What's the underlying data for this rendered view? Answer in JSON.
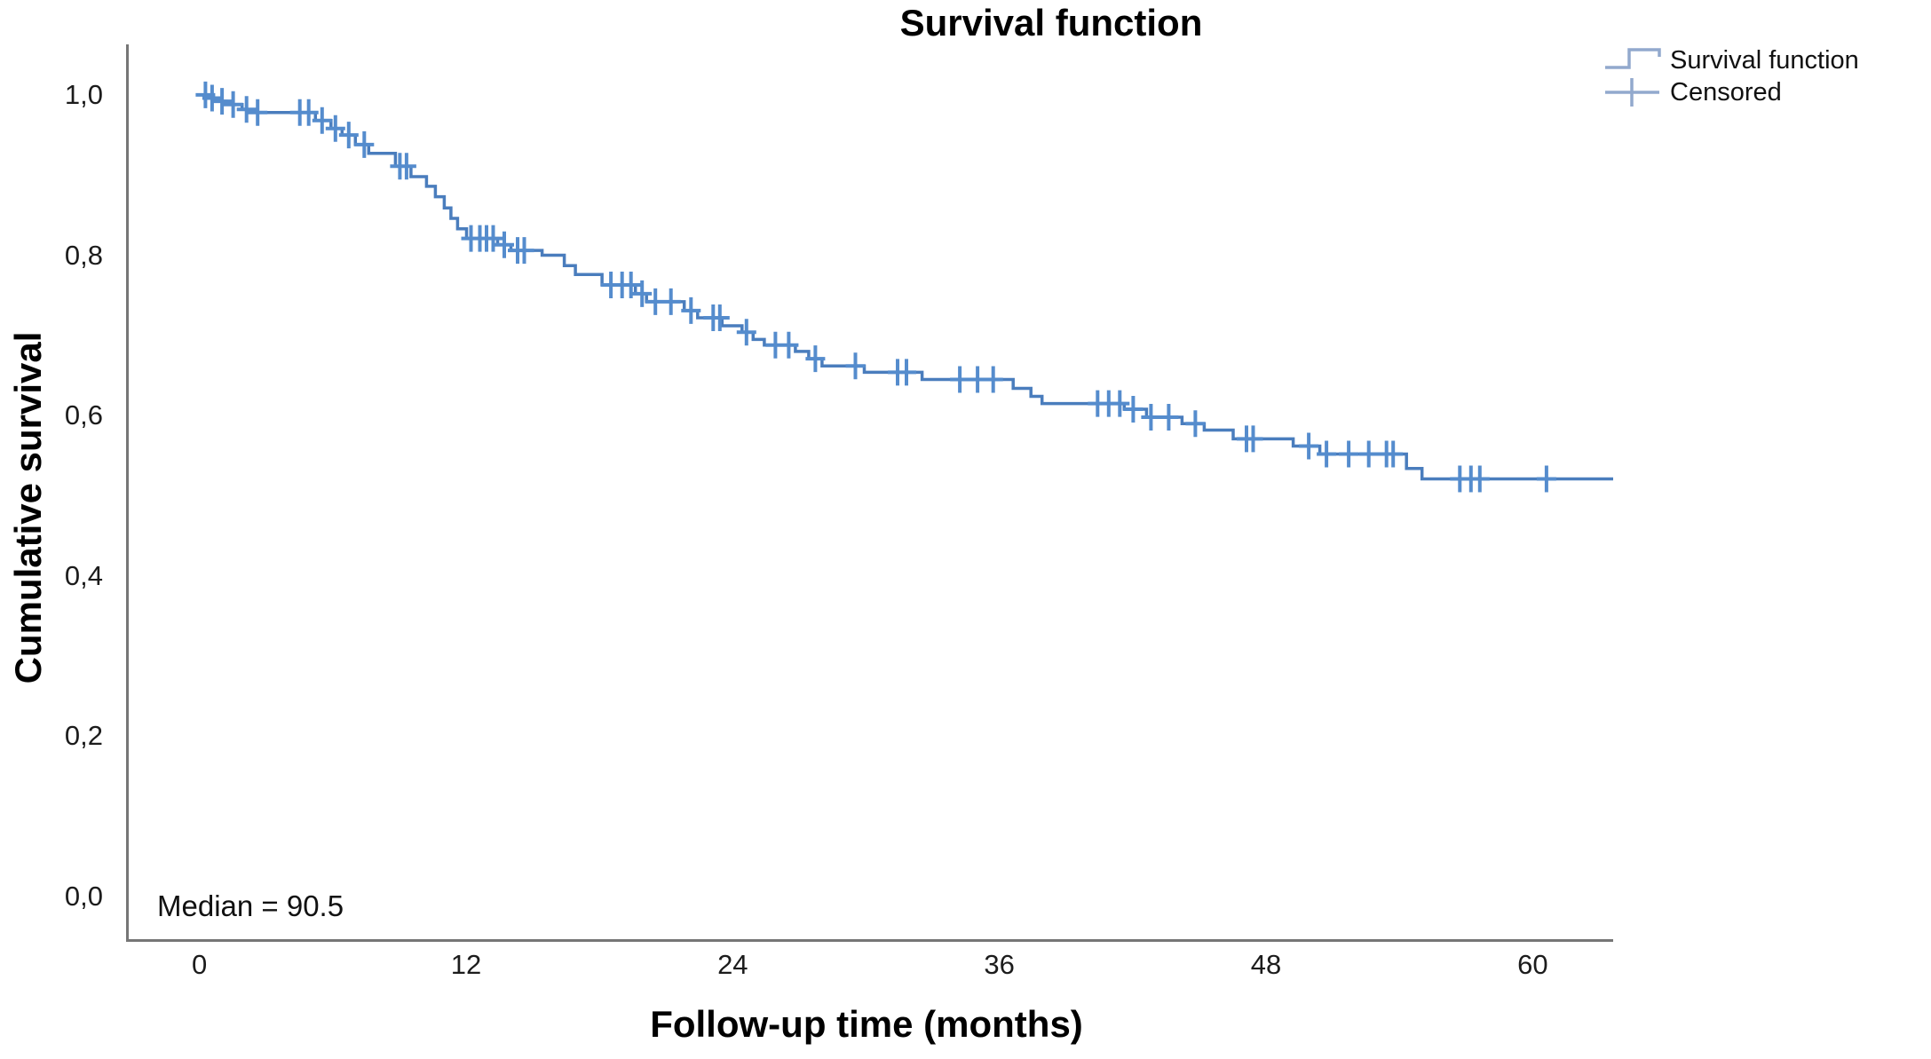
{
  "colors": {
    "curve": "#4a7dbd",
    "censor": "#558ccd",
    "legend_icon": "#92a9cd",
    "axis": "#767676",
    "text": "#111111"
  },
  "chart_data": {
    "type": "line",
    "subtype": "kaplan_meier_step",
    "title": "Survival function",
    "xlabel": "Follow-up time (months)",
    "ylabel": "Cumulative survival",
    "annotation": "Median = 90.5",
    "median_value": 90.5,
    "legend": [
      "Survival function",
      "Censored"
    ],
    "legend_position": "top-right",
    "grid": false,
    "xlim": [
      -3.3,
      63.5
    ],
    "ylim": [
      -0.053,
      1.063
    ],
    "x_ticks": [
      0,
      12,
      24,
      36,
      48,
      60
    ],
    "y_ticks": [
      "0,0",
      "0,2",
      "0,4",
      "0,6",
      "0,8",
      "1,0"
    ],
    "y_tick_values": [
      0.0,
      0.2,
      0.4,
      0.6,
      0.8,
      1.0
    ],
    "curve_end_time": 63.5,
    "series": [
      {
        "name": "Survival function",
        "steps": [
          [
            0.0,
            1.0
          ],
          [
            0.3,
            0.996
          ],
          [
            0.7,
            0.992
          ],
          [
            1.1,
            0.988
          ],
          [
            1.8,
            0.982
          ],
          [
            2.2,
            0.978
          ],
          [
            5.1,
            0.968
          ],
          [
            5.8,
            0.958
          ],
          [
            6.3,
            0.95
          ],
          [
            6.9,
            0.938
          ],
          [
            7.5,
            0.927
          ],
          [
            8.7,
            0.911
          ],
          [
            9.4,
            0.898
          ],
          [
            10.1,
            0.886
          ],
          [
            10.5,
            0.873
          ],
          [
            10.9,
            0.859
          ],
          [
            11.2,
            0.846
          ],
          [
            11.5,
            0.833
          ],
          [
            11.9,
            0.821
          ],
          [
            13.3,
            0.813
          ],
          [
            13.9,
            0.806
          ],
          [
            15.3,
            0.8
          ],
          [
            16.3,
            0.787
          ],
          [
            16.8,
            0.776
          ],
          [
            18.0,
            0.763
          ],
          [
            19.5,
            0.752
          ],
          [
            20.0,
            0.742
          ],
          [
            21.7,
            0.731
          ],
          [
            22.3,
            0.722
          ],
          [
            23.4,
            0.712
          ],
          [
            24.3,
            0.704
          ],
          [
            24.8,
            0.695
          ],
          [
            25.3,
            0.688
          ],
          [
            26.7,
            0.68
          ],
          [
            27.3,
            0.671
          ],
          [
            27.9,
            0.662
          ],
          [
            29.8,
            0.654
          ],
          [
            32.4,
            0.645
          ],
          [
            36.5,
            0.634
          ],
          [
            37.3,
            0.624
          ],
          [
            37.8,
            0.615
          ],
          [
            41.5,
            0.608
          ],
          [
            42.5,
            0.598
          ],
          [
            44.1,
            0.59
          ],
          [
            45.1,
            0.582
          ],
          [
            46.4,
            0.571
          ],
          [
            49.1,
            0.562
          ],
          [
            50.3,
            0.552
          ],
          [
            54.2,
            0.534
          ],
          [
            54.9,
            0.521
          ]
        ]
      }
    ],
    "censored": [
      [
        0.15,
        1.0
      ],
      [
        0.45,
        0.996
      ],
      [
        0.9,
        0.992
      ],
      [
        1.4,
        0.988
      ],
      [
        2.0,
        0.982
      ],
      [
        2.5,
        0.978
      ],
      [
        4.4,
        0.978
      ],
      [
        4.8,
        0.978
      ],
      [
        5.4,
        0.968
      ],
      [
        6.0,
        0.958
      ],
      [
        6.6,
        0.95
      ],
      [
        7.3,
        0.938
      ],
      [
        8.9,
        0.911
      ],
      [
        9.2,
        0.911
      ],
      [
        12.1,
        0.821
      ],
      [
        12.5,
        0.821
      ],
      [
        12.8,
        0.821
      ],
      [
        13.1,
        0.821
      ],
      [
        13.6,
        0.813
      ],
      [
        14.2,
        0.806
      ],
      [
        14.5,
        0.806
      ],
      [
        18.4,
        0.763
      ],
      [
        18.9,
        0.763
      ],
      [
        19.3,
        0.763
      ],
      [
        19.8,
        0.752
      ],
      [
        20.4,
        0.742
      ],
      [
        21.1,
        0.742
      ],
      [
        22.0,
        0.731
      ],
      [
        23.0,
        0.722
      ],
      [
        23.3,
        0.722
      ],
      [
        24.5,
        0.704
      ],
      [
        25.8,
        0.688
      ],
      [
        26.4,
        0.688
      ],
      [
        27.6,
        0.671
      ],
      [
        29.4,
        0.662
      ],
      [
        31.3,
        0.654
      ],
      [
        31.7,
        0.654
      ],
      [
        34.1,
        0.645
      ],
      [
        34.9,
        0.645
      ],
      [
        35.6,
        0.645
      ],
      [
        40.3,
        0.615
      ],
      [
        40.8,
        0.615
      ],
      [
        41.3,
        0.615
      ],
      [
        41.9,
        0.608
      ],
      [
        42.7,
        0.598
      ],
      [
        43.5,
        0.598
      ],
      [
        44.7,
        0.59
      ],
      [
        47.0,
        0.571
      ],
      [
        47.3,
        0.571
      ],
      [
        49.8,
        0.562
      ],
      [
        50.6,
        0.552
      ],
      [
        51.6,
        0.552
      ],
      [
        52.5,
        0.552
      ],
      [
        53.3,
        0.552
      ],
      [
        53.6,
        0.552
      ],
      [
        56.6,
        0.521
      ],
      [
        57.1,
        0.521
      ],
      [
        57.5,
        0.521
      ],
      [
        60.5,
        0.521
      ]
    ]
  }
}
